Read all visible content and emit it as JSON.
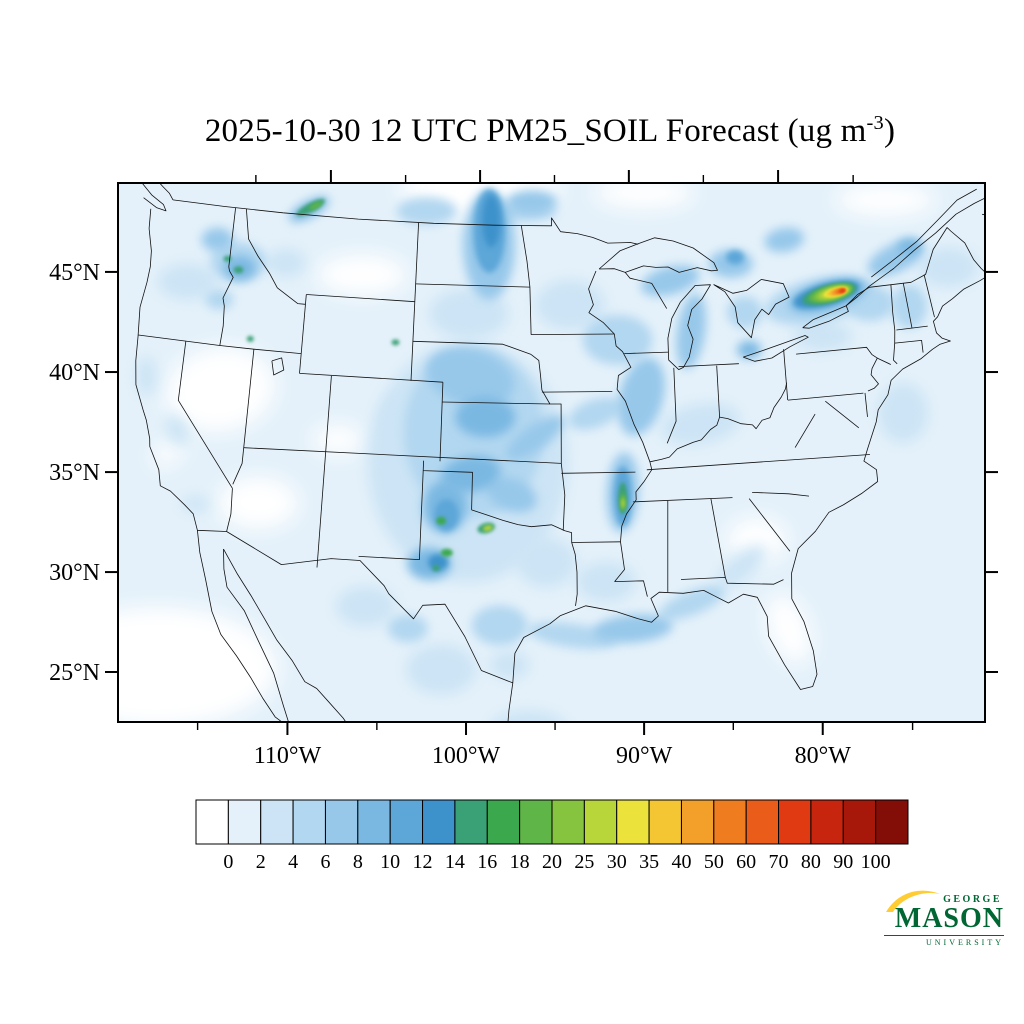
{
  "page": {
    "bg": "#FFFFFF"
  },
  "title": {
    "prefix": "2025-10-30 12 UTC PM25_SOIL Forecast (ug m",
    "sup": "-3",
    "suffix": ")"
  },
  "axes": {
    "lat_ticks": [
      {
        "label": "45°N",
        "lat": 45
      },
      {
        "label": "40°N",
        "lat": 40
      },
      {
        "label": "35°N",
        "lat": 35
      },
      {
        "label": "30°N",
        "lat": 30
      },
      {
        "label": "25°N",
        "lat": 25
      }
    ],
    "lon_ticks": [
      {
        "label": "110°W",
        "lon": -110
      },
      {
        "label": "100°W",
        "lon": -100
      },
      {
        "label": "90°W",
        "lon": -90
      },
      {
        "label": "80°W",
        "lon": -80
      }
    ],
    "minor_lons": [
      -115,
      -105,
      -95,
      -85,
      -75
    ]
  },
  "colorbar": {
    "labels": [
      "0",
      "2",
      "4",
      "6",
      "8",
      "10",
      "12",
      "14",
      "16",
      "18",
      "20",
      "25",
      "30",
      "35",
      "40",
      "50",
      "60",
      "70",
      "80",
      "90",
      "100"
    ],
    "colors": [
      "#FFFFFF",
      "#E4F1FA",
      "#CCE4F5",
      "#B2D7F0",
      "#97C8EA",
      "#7AB8E2",
      "#5CA6D8",
      "#3E92CB",
      "#3AA076",
      "#3BA84E",
      "#5FB547",
      "#86C43F",
      "#B8D53A",
      "#EBE23B",
      "#F4C633",
      "#F3A02A",
      "#EF7D20",
      "#E95C19",
      "#DF3A12",
      "#C8250E",
      "#A8180A",
      "#820E07"
    ]
  },
  "chart_data": {
    "type": "heatmap",
    "title": "2025-10-30 12 UTC PM25_SOIL Forecast (ug m-3)",
    "variable": "PM25_SOIL",
    "units": "ug m-3",
    "valid_time": "2025-10-30 12 UTC",
    "region": "Continental United States and border regions",
    "lat_tick_values": [
      45,
      40,
      35,
      30,
      25
    ],
    "lon_tick_values": [
      -110,
      -100,
      -90,
      -80
    ],
    "levels": [
      0,
      2,
      4,
      6,
      8,
      10,
      12,
      14,
      16,
      18,
      20,
      25,
      30,
      35,
      40,
      50,
      60,
      70,
      80,
      90,
      100
    ],
    "legend_position": "bottom",
    "grid": false,
    "hotspots": [
      {
        "region": "eastern Ontario / upstate New York border",
        "peak_value_ug_m3": "70-80"
      },
      {
        "region": "eastern Arkansas plume",
        "peak_value_ug_m3": "20-30"
      },
      {
        "region": "north-central Texas (Wichita Falls area)",
        "peak_value_ug_m3": "25-30"
      },
      {
        "region": "Texas Panhandle (Lubbock area)",
        "peak_value_ug_m3": "16-18"
      },
      {
        "region": "west Texas (Midland area)",
        "peak_value_ug_m3": "16-18"
      },
      {
        "region": "central Idaho",
        "peak_value_ug_m3": "14-16"
      },
      {
        "region": "Montana / Saskatchewan border streak",
        "peak_value_ug_m3": "18-20"
      },
      {
        "region": "North Dakota / Manitoba border plume",
        "peak_value_ug_m3": "12-14"
      },
      {
        "region": "eastern Wyoming",
        "peak_value_ug_m3": "14-16"
      },
      {
        "region": "Nevada/Utah border",
        "peak_value_ug_m3": "14-16"
      },
      {
        "region": "Gulf coast arc (TX to FL panhandle)",
        "peak_value_ug_m3": "6-10"
      },
      {
        "region": "central Great Plains broad plume",
        "peak_value_ug_m3": "8-14"
      }
    ],
    "field_blobs": [
      [
        -116.5,
        39.8,
        55,
        42,
        -10,
        -1
      ],
      [
        -112.8,
        34.3,
        40,
        26,
        0,
        -1
      ],
      [
        -107.5,
        46.2,
        45,
        20,
        0,
        -1
      ],
      [
        -81.5,
        28.2,
        20,
        36,
        -20,
        -1
      ],
      [
        -83.0,
        32.8,
        30,
        22,
        0,
        -1
      ],
      [
        -100.0,
        50.8,
        80,
        28,
        0,
        -1
      ],
      [
        -119.0,
        25.5,
        120,
        60,
        0,
        -1
      ],
      [
        -108.3,
        37.8,
        25,
        15,
        0,
        -1
      ],
      [
        -73.0,
        49.3,
        50,
        16,
        0,
        -1
      ],
      [
        -120.3,
        36.3,
        18,
        10,
        -35,
        -1
      ],
      [
        -89.0,
        50.6,
        50,
        16,
        0,
        -1
      ],
      [
        -100.3,
        37.0,
        100,
        120,
        0,
        3
      ],
      [
        -94.0,
        45.0,
        35,
        25,
        0,
        3
      ],
      [
        -95.5,
        32.0,
        30,
        25,
        0,
        3
      ],
      [
        -86.0,
        38.8,
        40,
        20,
        -10,
        3
      ],
      [
        -78.0,
        42.8,
        30,
        15,
        0,
        3
      ],
      [
        -73.5,
        38.5,
        25,
        30,
        0,
        3
      ],
      [
        -96.5,
        23.5,
        40,
        20,
        0,
        3
      ],
      [
        -104.5,
        39.0,
        20,
        25,
        0,
        3
      ],
      [
        -112.5,
        46.5,
        20,
        14,
        0,
        3
      ],
      [
        -100.5,
        44.5,
        40,
        25,
        0,
        3
      ],
      [
        -120.5,
        45.0,
        30,
        18,
        0,
        3
      ],
      [
        -123.0,
        40.0,
        10,
        20,
        0,
        3
      ],
      [
        -119.8,
        37.5,
        10,
        16,
        -30,
        3
      ],
      [
        -117.5,
        33.9,
        14,
        8,
        0,
        3
      ],
      [
        -101.5,
        26.5,
        35,
        25,
        0,
        3
      ],
      [
        -106.0,
        29.5,
        30,
        20,
        0,
        3
      ],
      [
        -84.0,
        31.5,
        30,
        12,
        -40,
        3
      ],
      [
        -92.0,
        31.0,
        30,
        20,
        0,
        3
      ],
      [
        -97.6,
        26.8,
        20,
        14,
        0,
        3
      ],
      [
        -69.5,
        45.5,
        30,
        20,
        0,
        3
      ],
      [
        -100.0,
        38.5,
        70,
        85,
        0,
        5
      ],
      [
        -91.0,
        43.2,
        35,
        25,
        0,
        5
      ],
      [
        -92.5,
        39.5,
        28,
        14,
        -20,
        5
      ],
      [
        -82.8,
        44.3,
        18,
        16,
        0,
        5
      ],
      [
        -94.0,
        28.3,
        45,
        12,
        8,
        5
      ],
      [
        -87.0,
        29.8,
        35,
        12,
        -22,
        5
      ],
      [
        -98.2,
        28.8,
        28,
        20,
        0,
        5
      ],
      [
        -103.5,
        49.6,
        30,
        14,
        0,
        5
      ],
      [
        -116.2,
        46.3,
        28,
        20,
        0,
        5
      ],
      [
        -117.5,
        44.3,
        14,
        10,
        0,
        5
      ],
      [
        -78.0,
        44.6,
        55,
        22,
        -12,
        5
      ],
      [
        -74.8,
        44.2,
        25,
        18,
        0,
        5
      ],
      [
        -72.3,
        43.8,
        18,
        22,
        0,
        5
      ],
      [
        -97.5,
        49.7,
        40,
        10,
        0,
        5
      ],
      [
        -103.5,
        28.5,
        20,
        14,
        0,
        5
      ],
      [
        -100.3,
        41.3,
        45,
        28,
        15,
        7
      ],
      [
        -97.6,
        35.4,
        26,
        16,
        20,
        7
      ],
      [
        -96.2,
        38.3,
        34,
        12,
        -35,
        7
      ],
      [
        -99.3,
        48.0,
        26,
        55,
        0,
        7
      ],
      [
        -96.5,
        50.2,
        25,
        12,
        0,
        7
      ],
      [
        -89.6,
        40.3,
        22,
        40,
        15,
        7
      ],
      [
        -87.5,
        46.1,
        30,
        14,
        -15,
        7
      ],
      [
        -86.3,
        43.5,
        14,
        38,
        8,
        7
      ],
      [
        -83.5,
        46.8,
        22,
        14,
        0,
        7
      ],
      [
        -79.9,
        47.8,
        20,
        12,
        -10,
        7
      ],
      [
        -72.8,
        46.3,
        30,
        14,
        -25,
        7
      ],
      [
        -90.5,
        28.6,
        40,
        14,
        -5,
        7
      ],
      [
        -118.3,
        47.3,
        16,
        12,
        0,
        7
      ],
      [
        -90.9,
        35.5,
        16,
        40,
        3,
        7
      ],
      [
        -99.3,
        39.3,
        30,
        20,
        0,
        9
      ],
      [
        -100.1,
        36.4,
        30,
        18,
        -10,
        9
      ],
      [
        -101.6,
        34.7,
        22,
        26,
        0,
        9
      ],
      [
        -102.4,
        31.8,
        22,
        16,
        0,
        9
      ],
      [
        -116.0,
        46.0,
        16,
        12,
        0,
        9
      ],
      [
        -82.7,
        42.4,
        12,
        9,
        0,
        9
      ],
      [
        -77.4,
        44.8,
        40,
        14,
        -15,
        9
      ],
      [
        -71.8,
        46.8,
        12,
        8,
        0,
        9
      ],
      [
        -111.3,
        49.3,
        22,
        8,
        -28,
        9
      ],
      [
        -101.5,
        34.3,
        12,
        16,
        0,
        11
      ],
      [
        -99.3,
        48.7,
        16,
        42,
        0,
        11
      ],
      [
        -90.9,
        35.3,
        9,
        30,
        0,
        11
      ],
      [
        -83.2,
        47.1,
        9,
        7,
        0,
        11
      ],
      [
        -101.9,
        31.9,
        10,
        8,
        0,
        13
      ],
      [
        -99.2,
        49.2,
        9,
        26,
        0,
        13
      ],
      [
        -77.5,
        44.85,
        34,
        11,
        -15,
        13
      ],
      [
        -111.2,
        49.4,
        16,
        4.5,
        -28,
        15
      ],
      [
        -116.1,
        45.9,
        5,
        3.5,
        0,
        15
      ],
      [
        -117.2,
        46.4,
        4,
        3,
        0,
        15
      ],
      [
        -114.4,
        42.5,
        3.5,
        3,
        0,
        15
      ],
      [
        -105.1,
        42.9,
        4,
        3,
        0,
        15
      ],
      [
        -99.1,
        33.7,
        9,
        5,
        -15,
        15
      ],
      [
        -102.0,
        31.6,
        4,
        3,
        0,
        15
      ],
      [
        -90.9,
        35.2,
        4.5,
        16,
        0,
        15
      ],
      [
        -77.3,
        44.87,
        28,
        9,
        -15,
        15
      ],
      [
        -101.8,
        34.0,
        5,
        4,
        0,
        17
      ],
      [
        -101.4,
        32.4,
        6,
        4,
        0,
        17
      ],
      [
        -110.9,
        49.5,
        7,
        2.5,
        -28,
        19
      ],
      [
        -90.9,
        35.0,
        2.8,
        9,
        0,
        19
      ],
      [
        -77.2,
        44.9,
        23,
        7.5,
        -15,
        19
      ],
      [
        -77.1,
        44.9,
        19,
        6.2,
        -15,
        22
      ],
      [
        -99.0,
        33.7,
        5,
        2.8,
        -15,
        27
      ],
      [
        -90.9,
        34.95,
        1.6,
        5,
        0,
        27
      ],
      [
        -77.0,
        44.92,
        15.5,
        5.2,
        -15,
        27
      ],
      [
        -76.9,
        44.93,
        12.5,
        4.4,
        -15,
        32
      ],
      [
        -76.8,
        44.94,
        10,
        3.7,
        -15,
        37
      ],
      [
        -76.7,
        44.95,
        7.8,
        3.1,
        -15,
        45
      ],
      [
        -76.6,
        44.96,
        5.8,
        2.5,
        -15,
        55
      ],
      [
        -76.5,
        44.96,
        4,
        2,
        -15,
        65
      ],
      [
        -76.45,
        44.97,
        2.6,
        1.5,
        -15,
        75
      ]
    ]
  },
  "logo": {
    "george": "GEORGE",
    "mason": "MASON",
    "university": "UNIVERSITY",
    "green": "#006633",
    "gold": "#FFCC33"
  }
}
